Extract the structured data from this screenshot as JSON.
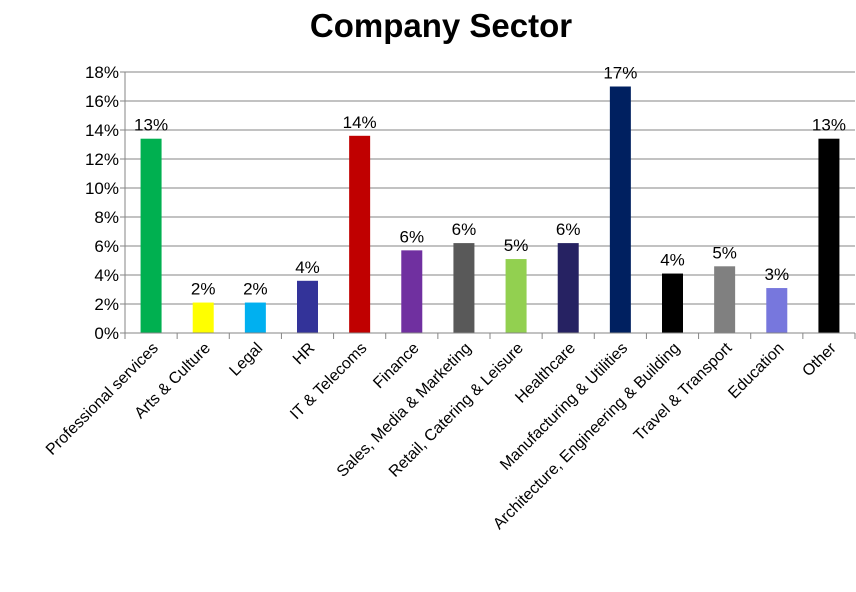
{
  "chart_data": {
    "type": "bar",
    "title": "Company Sector",
    "categories": [
      "Professional services",
      "Arts & Culture",
      "Legal",
      "HR",
      "IT & Telecoms",
      "Finance",
      "Sales, Media & Marketing",
      "Retail, Catering & Leisure",
      "Healthcare",
      "Manufacturing & Utilities",
      "Architecture, Engineering & Building",
      "Travel & Transport",
      "Education",
      "Other"
    ],
    "values": [
      13.4,
      2.1,
      2.1,
      3.6,
      13.6,
      5.7,
      6.2,
      5.1,
      6.2,
      17.0,
      4.1,
      4.6,
      3.1,
      13.4
    ],
    "data_labels": [
      "13%",
      "2%",
      "2%",
      "4%",
      "14%",
      "6%",
      "6%",
      "5%",
      "6%",
      "17%",
      "4%",
      "5%",
      "3%",
      "13%"
    ],
    "colors": [
      "#00b050",
      "#ffff00",
      "#00b0f0",
      "#333399",
      "#c00000",
      "#7030a0",
      "#595959",
      "#92d050",
      "#262262",
      "#002060",
      "#000000",
      "#808080",
      "#7777dd",
      "#000000"
    ],
    "ylim": [
      0,
      18
    ],
    "yticks": [
      0,
      2,
      4,
      6,
      8,
      10,
      12,
      14,
      16,
      18
    ],
    "ytick_labels": [
      "0%",
      "2%",
      "4%",
      "6%",
      "8%",
      "10%",
      "12%",
      "14%",
      "16%",
      "18%"
    ],
    "grid": true,
    "xlabel": "",
    "ylabel": ""
  }
}
